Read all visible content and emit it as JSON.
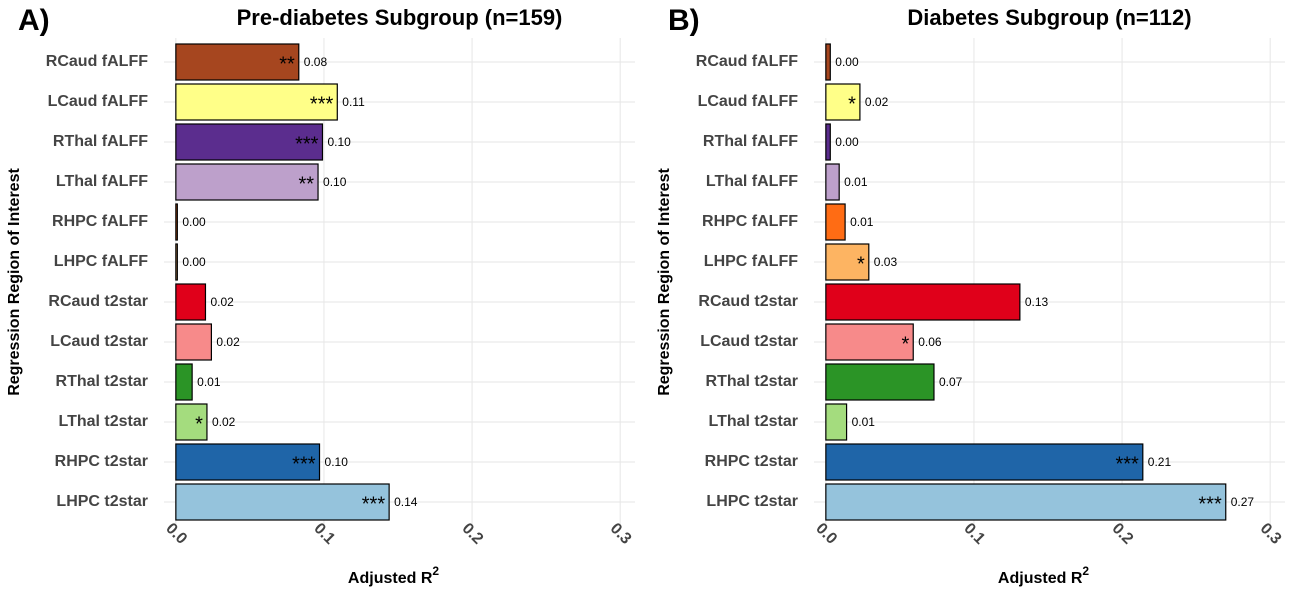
{
  "chart_data": [
    {
      "type": "bar",
      "orientation": "horizontal",
      "panel_label": "A)",
      "title": "Pre-diabetes Subgroup (n=159)",
      "x_label": "Adjusted R",
      "x_label_superscript": "2",
      "y_label": "Regression Region of Interest",
      "categories": [
        "RCaud fALFF",
        "LCaud fALFF",
        "RThal fALFF",
        "LThal fALFF",
        "RHPC fALFF",
        "LHPC fALFF",
        "RCaud t2star",
        "LCaud t2star",
        "RThal t2star",
        "LThal t2star",
        "RHPC t2star",
        "LHPC t2star"
      ],
      "values": [
        0.083,
        0.109,
        0.099,
        0.096,
        0.001,
        0.001,
        0.02,
        0.024,
        0.011,
        0.021,
        0.097,
        0.144
      ],
      "value_labels": [
        "0.08",
        "0.11",
        "0.10",
        "0.10",
        "0.00",
        "0.00",
        "0.02",
        "0.02",
        "0.01",
        "0.02",
        "0.10",
        "0.14"
      ],
      "significance": [
        "**",
        "***",
        "***",
        "**",
        null,
        null,
        null,
        null,
        null,
        "*",
        "***",
        "***"
      ],
      "colors": [
        "#a6461f",
        "#ffff88",
        "#5b2d8e",
        "#bda0cb",
        "#ff6c14",
        "#fdb462",
        "#e0001a",
        "#f78a8a",
        "#2b9426",
        "#a4dc7e",
        "#1f65a8",
        "#95c3dc"
      ],
      "xlim": [
        -0.008,
        0.31
      ],
      "xticks": [
        {
          "value": 0,
          "label": "0.0"
        },
        0.1,
        0.2,
        0.3
      ],
      "grid": true
    },
    {
      "type": "bar",
      "orientation": "horizontal",
      "panel_label": "B)",
      "title": "Diabetes Subgroup (n=112)",
      "x_label": "Adjusted R",
      "x_label_superscript": "2",
      "y_label": "Regression Region of Interest",
      "categories": [
        "RCaud fALFF",
        "LCaud fALFF",
        "RThal fALFF",
        "LThal fALFF",
        "RHPC fALFF",
        "LHPC fALFF",
        "RCaud t2star",
        "LCaud t2star",
        "RThal t2star",
        "LThal t2star",
        "RHPC t2star",
        "LHPC t2star"
      ],
      "values": [
        0.003,
        0.023,
        0.003,
        0.009,
        0.013,
        0.029,
        0.131,
        0.059,
        0.073,
        0.014,
        0.214,
        0.27
      ],
      "value_labels": [
        "0.00",
        "0.02",
        "0.00",
        "0.01",
        "0.01",
        "0.03",
        "0.13",
        "0.06",
        "0.07",
        "0.01",
        "0.21",
        "0.27"
      ],
      "significance": [
        null,
        "*",
        null,
        null,
        null,
        "*",
        null,
        "*",
        null,
        null,
        "***",
        "***"
      ],
      "colors": [
        "#a6461f",
        "#ffff88",
        "#5b2d8e",
        "#bda0cb",
        "#ff6c14",
        "#fdb462",
        "#e0001a",
        "#f78a8a",
        "#2b9426",
        "#a4dc7e",
        "#1f65a8",
        "#95c3dc"
      ],
      "xlim": [
        -0.008,
        0.31
      ],
      "xticks": [
        {
          "value": 0,
          "label": "0.0"
        },
        0.1,
        0.2,
        0.3
      ],
      "grid": true
    }
  ]
}
